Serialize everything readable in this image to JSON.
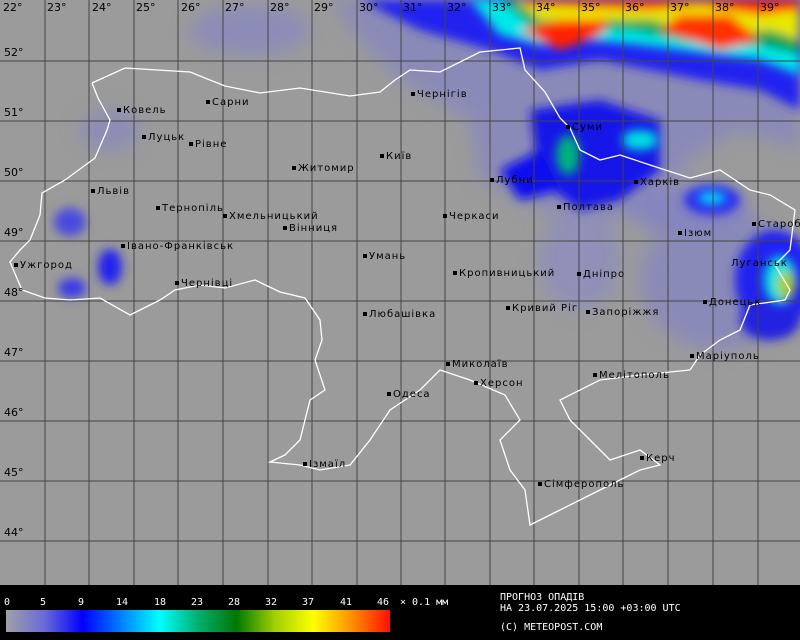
{
  "longitudes": [
    "22°",
    "23°",
    "24°",
    "25°",
    "26°",
    "27°",
    "28°",
    "29°",
    "30°",
    "31°",
    "32°",
    "33°",
    "34°",
    "35°",
    "36°",
    "37°",
    "38°",
    "39°"
  ],
  "latitudes": [
    "52°",
    "51°",
    "50°",
    "49°",
    "48°",
    "47°",
    "46°",
    "45°",
    "44°"
  ],
  "cities": [
    "Ковель",
    "Сарни",
    "Луцьк",
    "Рівне",
    "Житомир",
    "Київ",
    "Чернігів",
    "Суми",
    "Лубни",
    "Харків",
    "Полтава",
    "Львів",
    "Тернопіль",
    "Хмельницький",
    "Вінниця",
    "Черкаси",
    "Ізюм",
    "Старобільськ",
    "Луганськ",
    "Івано-Франківськ",
    "Ужгород",
    "Умань",
    "Кропивницький",
    "Дніпро",
    "Чернівці",
    "Кривий Ріг",
    "Запоріжжя",
    "Донецьк",
    "Любашівка",
    "Миколаїв",
    "Маріуполь",
    "Мелітополь",
    "Херсон",
    "Одеса",
    "Ізмаїл",
    "Керч",
    "Сімферополь"
  ],
  "legend": {
    "ticks": [
      "0",
      "5",
      "9",
      "14",
      "18",
      "23",
      "28",
      "32",
      "37",
      "41",
      "46"
    ],
    "unit": "× 0.1 мм",
    "colors": [
      "#a0a0a8",
      "#0000ff",
      "#00ffff",
      "#007800",
      "#ffff00",
      "#ff1000"
    ]
  },
  "info": {
    "title": "ПРОГНОЗ ОПАДІВ",
    "date": "НА 23.07.2025 15:00 +03:00 UTC",
    "copyright": "(C) METEOPOST.COM"
  }
}
